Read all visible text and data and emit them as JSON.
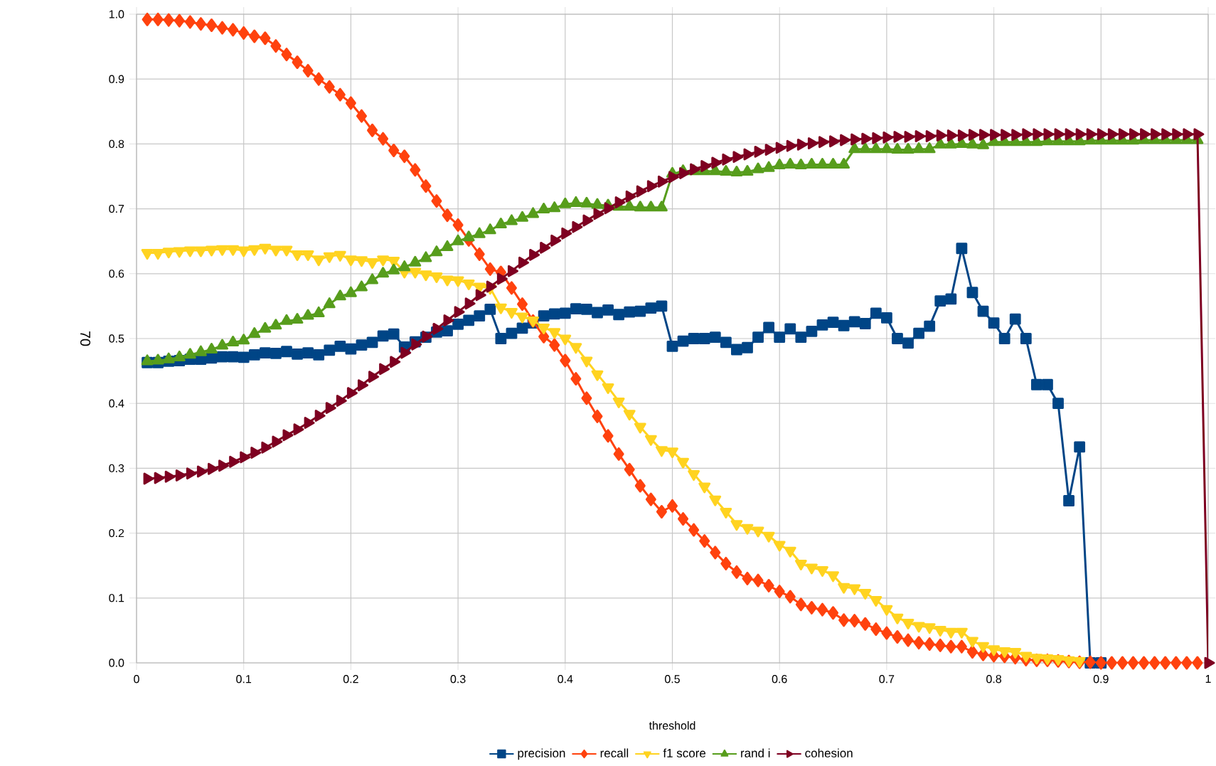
{
  "chart_data": {
    "type": "line",
    "xlabel": "threshold",
    "ylabel": "70",
    "x": [
      0.01,
      0.02,
      0.03,
      0.04,
      0.05,
      0.06,
      0.07,
      0.08,
      0.09,
      0.1,
      0.11,
      0.12,
      0.13,
      0.14,
      0.15,
      0.16,
      0.17,
      0.18,
      0.19,
      0.2,
      0.21,
      0.22,
      0.23,
      0.24,
      0.25,
      0.26,
      0.27,
      0.28,
      0.29,
      0.3,
      0.31,
      0.32,
      0.33,
      0.34,
      0.35,
      0.36,
      0.37,
      0.38,
      0.39,
      0.4,
      0.41,
      0.42,
      0.43,
      0.44,
      0.45,
      0.46,
      0.47,
      0.48,
      0.49,
      0.5,
      0.51,
      0.52,
      0.53,
      0.54,
      0.55,
      0.56,
      0.57,
      0.58,
      0.59,
      0.6,
      0.61,
      0.62,
      0.63,
      0.64,
      0.65,
      0.66,
      0.67,
      0.68,
      0.69,
      0.7,
      0.71,
      0.72,
      0.73,
      0.74,
      0.75,
      0.76,
      0.77,
      0.78,
      0.79,
      0.8,
      0.81,
      0.82,
      0.83,
      0.84,
      0.85,
      0.86,
      0.87,
      0.88,
      0.89,
      0.9,
      0.91,
      0.92,
      0.93,
      0.94,
      0.95,
      0.96,
      0.97,
      0.98,
      0.99,
      1.0
    ],
    "series": [
      {
        "name": "precision",
        "color": "#004586",
        "marker": "square",
        "values": [
          0.463,
          0.463,
          0.465,
          0.466,
          0.468,
          0.468,
          0.47,
          0.472,
          0.472,
          0.471,
          0.475,
          0.478,
          0.477,
          0.48,
          0.476,
          0.478,
          0.475,
          0.482,
          0.488,
          0.484,
          0.49,
          0.494,
          0.504,
          0.507,
          0.487,
          0.495,
          0.502,
          0.51,
          0.512,
          0.522,
          0.528,
          0.535,
          0.545,
          0.5,
          0.508,
          0.516,
          0.524,
          0.535,
          0.538,
          0.539,
          0.546,
          0.545,
          0.54,
          0.544,
          0.537,
          0.541,
          0.542,
          0.547,
          0.55,
          0.488,
          0.496,
          0.5,
          0.5,
          0.502,
          0.494,
          0.483,
          0.486,
          0.502,
          0.517,
          0.502,
          0.515,
          0.502,
          0.511,
          0.521,
          0.525,
          0.52,
          0.526,
          0.523,
          0.539,
          0.532,
          0.5,
          0.493,
          0.508,
          0.519,
          0.558,
          0.561,
          0.639,
          0.571,
          0.542,
          0.524,
          0.5,
          0.53,
          0.5,
          0.429,
          0.429,
          0.4,
          0.25,
          0.333,
          0,
          0,
          null,
          null,
          null,
          null,
          null,
          null,
          null,
          null,
          null,
          null
        ]
      },
      {
        "name": "recall",
        "color": "#ff420e",
        "marker": "diamond",
        "values": [
          0.992,
          0.992,
          0.991,
          0.99,
          0.988,
          0.985,
          0.983,
          0.979,
          0.976,
          0.971,
          0.966,
          0.963,
          0.951,
          0.938,
          0.926,
          0.913,
          0.9,
          0.888,
          0.876,
          0.863,
          0.843,
          0.821,
          0.808,
          0.79,
          0.781,
          0.76,
          0.735,
          0.712,
          0.69,
          0.675,
          0.652,
          0.63,
          0.607,
          0.602,
          0.578,
          0.553,
          0.527,
          0.503,
          0.49,
          0.466,
          0.438,
          0.408,
          0.38,
          0.35,
          0.322,
          0.298,
          0.273,
          0.252,
          0.233,
          0.242,
          0.222,
          0.205,
          0.188,
          0.17,
          0.153,
          0.14,
          0.13,
          0.127,
          0.119,
          0.11,
          0.102,
          0.09,
          0.085,
          0.082,
          0.077,
          0.066,
          0.065,
          0.06,
          0.052,
          0.046,
          0.04,
          0.035,
          0.031,
          0.029,
          0.027,
          0.025,
          0.025,
          0.017,
          0.013,
          0.011,
          0.01,
          0.008,
          0.005,
          0.004,
          0.004,
          0.003,
          0.002,
          0.001,
          0.001,
          0,
          0,
          0,
          0,
          0,
          0,
          0,
          0,
          0,
          0,
          null
        ]
      },
      {
        "name": "f1 score",
        "color": "#ffd320",
        "marker": "triangle",
        "values": [
          0.632,
          0.632,
          0.634,
          0.635,
          0.636,
          0.636,
          0.637,
          0.638,
          0.638,
          0.636,
          0.638,
          0.64,
          0.637,
          0.637,
          0.63,
          0.63,
          0.622,
          0.627,
          0.629,
          0.622,
          0.621,
          0.618,
          0.622,
          0.62,
          0.603,
          0.603,
          0.599,
          0.596,
          0.591,
          0.59,
          0.585,
          0.58,
          0.578,
          0.548,
          0.541,
          0.534,
          0.528,
          0.517,
          0.51,
          0.5,
          0.487,
          0.466,
          0.445,
          0.425,
          0.403,
          0.384,
          0.364,
          0.345,
          0.328,
          0.326,
          0.31,
          0.291,
          0.272,
          0.252,
          0.233,
          0.214,
          0.208,
          0.204,
          0.196,
          0.182,
          0.173,
          0.153,
          0.147,
          0.143,
          0.135,
          0.117,
          0.115,
          0.108,
          0.097,
          0.083,
          0.07,
          0.062,
          0.057,
          0.055,
          0.051,
          0.048,
          0.048,
          0.034,
          0.026,
          0.021,
          0.018,
          0.017,
          0.011,
          0.008,
          0.007,
          0.006,
          0.004,
          0.003,
          null,
          null,
          null,
          null,
          null,
          null,
          null,
          null,
          null,
          null,
          null,
          null
        ]
      },
      {
        "name": "rand i",
        "color": "#579d1c",
        "marker": "triangle",
        "values": [
          0.465,
          0.466,
          0.468,
          0.471,
          0.475,
          0.479,
          0.483,
          0.489,
          0.494,
          0.497,
          0.507,
          0.515,
          0.52,
          0.527,
          0.529,
          0.535,
          0.539,
          0.553,
          0.565,
          0.57,
          0.579,
          0.59,
          0.6,
          0.605,
          0.61,
          0.617,
          0.624,
          0.633,
          0.641,
          0.65,
          0.656,
          0.661,
          0.667,
          0.676,
          0.681,
          0.686,
          0.692,
          0.699,
          0.701,
          0.707,
          0.709,
          0.708,
          0.706,
          0.705,
          0.703,
          0.703,
          0.702,
          0.702,
          0.702,
          0.754,
          0.758,
          0.758,
          0.758,
          0.758,
          0.757,
          0.756,
          0.757,
          0.761,
          0.763,
          0.767,
          0.768,
          0.767,
          0.768,
          0.768,
          0.768,
          0.768,
          0.792,
          0.792,
          0.792,
          0.792,
          0.791,
          0.791,
          0.792,
          0.792,
          0.799,
          0.799,
          0.8,
          0.799,
          0.798,
          0.803,
          0.803,
          0.803,
          0.803,
          0.803,
          0.804,
          0.804,
          0.804,
          0.804,
          0.805,
          0.805,
          0.805,
          0.805,
          0.805,
          0.806,
          0.806,
          0.806,
          0.806,
          0.806,
          0.806,
          null
        ]
      },
      {
        "name": "cohesion",
        "color": "#7e0021",
        "marker": "triangle",
        "values": [
          0.284,
          0.285,
          0.287,
          0.289,
          0.292,
          0.295,
          0.299,
          0.304,
          0.31,
          0.317,
          0.324,
          0.332,
          0.341,
          0.351,
          0.36,
          0.37,
          0.381,
          0.393,
          0.404,
          0.416,
          0.428,
          0.441,
          0.453,
          0.464,
          0.478,
          0.491,
          0.503,
          0.515,
          0.528,
          0.541,
          0.554,
          0.567,
          0.58,
          0.592,
          0.604,
          0.617,
          0.629,
          0.64,
          0.651,
          0.662,
          0.672,
          0.682,
          0.692,
          0.701,
          0.71,
          0.719,
          0.727,
          0.735,
          0.742,
          0.749,
          0.755,
          0.761,
          0.766,
          0.771,
          0.776,
          0.78,
          0.784,
          0.788,
          0.791,
          0.794,
          0.797,
          0.799,
          0.801,
          0.803,
          0.804,
          0.806,
          0.807,
          0.808,
          0.809,
          0.81,
          0.811,
          0.811,
          0.812,
          0.812,
          0.813,
          0.813,
          0.813,
          0.814,
          0.814,
          0.814,
          0.814,
          0.814,
          0.815,
          0.815,
          0.815,
          0.815,
          0.815,
          0.815,
          0.815,
          0.815,
          0.815,
          0.815,
          0.815,
          0.815,
          0.815,
          0.815,
          0.815,
          0.815,
          0.815,
          0
        ]
      }
    ],
    "xlim": [
      0,
      1
    ],
    "ylim": [
      0,
      1
    ],
    "xticks": [
      0,
      0.1,
      0.2,
      0.3,
      0.4,
      0.5,
      0.6,
      0.7,
      0.8,
      0.9,
      1
    ],
    "yticks": [
      {
        "value": 0,
        "label": "0.0"
      },
      {
        "value": 0.1,
        "label": "0.1"
      },
      {
        "value": 0.2,
        "label": "0.2"
      },
      {
        "value": 0.3,
        "label": "0.3"
      },
      {
        "value": 0.4,
        "label": "0.4"
      },
      {
        "value": 0.5,
        "label": "0.5"
      },
      {
        "value": 0.6,
        "label": "0.6"
      },
      {
        "value": 0.7,
        "label": "0.7"
      },
      {
        "value": 0.8,
        "label": "0.8"
      },
      {
        "value": 0.9,
        "label": "0.9"
      },
      {
        "value": 1,
        "label": "1.0"
      }
    ],
    "grid": true,
    "legend": "bottom"
  }
}
